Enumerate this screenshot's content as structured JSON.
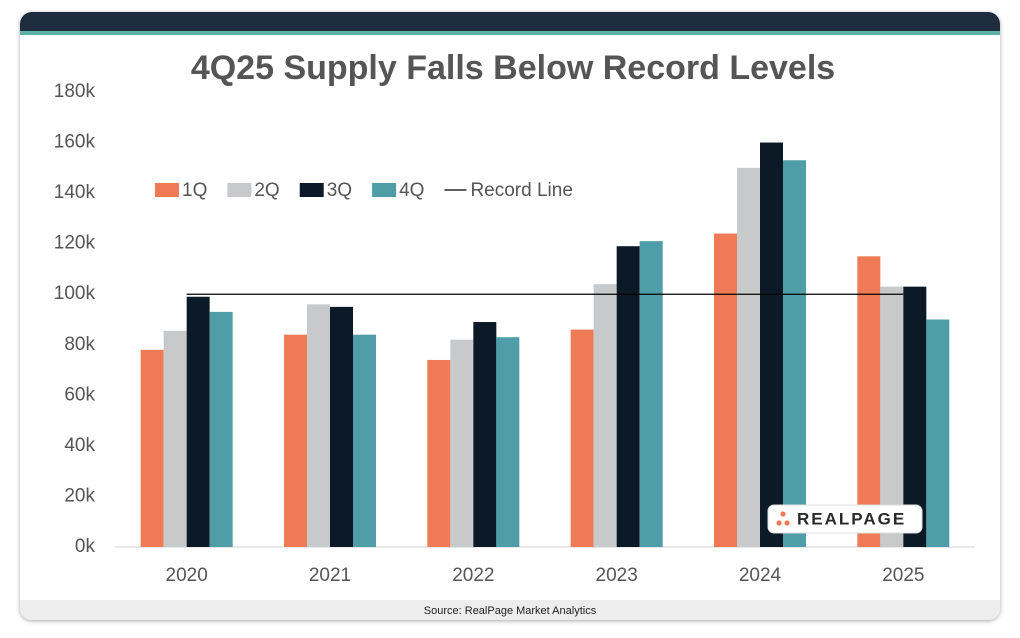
{
  "chart_data": {
    "type": "bar",
    "title": "4Q25 Supply Falls Below Record Levels",
    "categories": [
      "2020",
      "2021",
      "2022",
      "2023",
      "2024",
      "2025"
    ],
    "series": [
      {
        "name": "1Q",
        "color": "#ef7b56",
        "values": [
          78000,
          84000,
          74000,
          86000,
          124000,
          115000
        ]
      },
      {
        "name": "2Q",
        "color": "#c8c9cb",
        "values": [
          85500,
          96000,
          82000,
          104000,
          150000,
          103000
        ]
      },
      {
        "name": "3Q",
        "color": "#0c1a28",
        "values": [
          99000,
          95000,
          89000,
          119000,
          160000,
          103000
        ]
      },
      {
        "name": "4Q",
        "color": "#4f9ea7",
        "values": [
          93000,
          84000,
          83000,
          121000,
          153000,
          90000
        ]
      },
      {
        "name": "Record Line",
        "type": "line",
        "color": "#000000",
        "values": [
          100000,
          100000,
          100000,
          100000,
          100000,
          100000
        ]
      }
    ],
    "ylim": [
      0,
      180000
    ],
    "yticks": [
      {
        "value": 0,
        "label": "0k"
      },
      {
        "value": 20000,
        "label": "20k"
      },
      {
        "value": 40000,
        "label": "40k"
      },
      {
        "value": 60000,
        "label": "60k"
      },
      {
        "value": 80000,
        "label": "80k"
      },
      {
        "value": 100000,
        "label": "100k"
      },
      {
        "value": 120000,
        "label": "120k"
      },
      {
        "value": 140000,
        "label": "140k"
      },
      {
        "value": 160000,
        "label": "160k"
      },
      {
        "value": 180000,
        "label": "180k"
      }
    ],
    "grid": false,
    "legend": "top-left",
    "source": "Source: RealPage Market Analytics",
    "logo_text": "REALPAGE"
  }
}
